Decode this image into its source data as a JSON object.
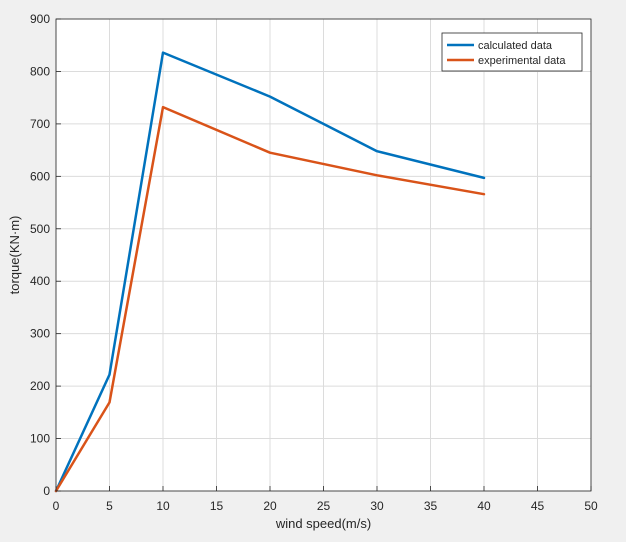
{
  "chart_data": {
    "type": "line",
    "title": "",
    "xlabel": "wind speed(m/s)",
    "ylabel": "torque(KN·m)",
    "xlim": [
      0,
      50
    ],
    "ylim": [
      0,
      900
    ],
    "xticks": [
      0,
      5,
      10,
      15,
      20,
      25,
      30,
      35,
      40,
      45,
      50
    ],
    "yticks": [
      0,
      100,
      200,
      300,
      400,
      500,
      600,
      700,
      800,
      900
    ],
    "grid": true,
    "legend_position": "top-right",
    "series": [
      {
        "name": "calculated data",
        "color": "#0072BD",
        "x": [
          0,
          5,
          10,
          20,
          30,
          40
        ],
        "y": [
          0,
          222,
          836,
          752,
          648,
          597
        ]
      },
      {
        "name": "experimental data",
        "color": "#D95319",
        "x": [
          0,
          5,
          10,
          20,
          30,
          40
        ],
        "y": [
          0,
          169,
          732,
          645,
          602,
          566
        ]
      }
    ]
  }
}
